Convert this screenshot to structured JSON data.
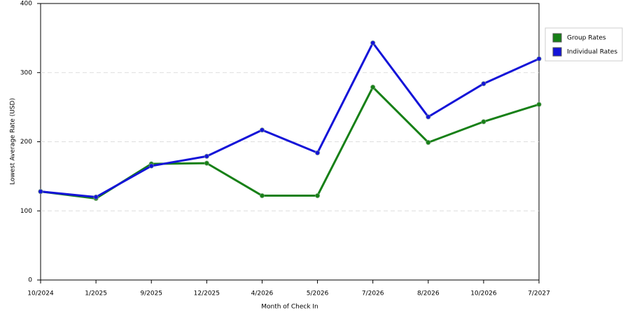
{
  "chart_data": {
    "type": "line",
    "x_label": "Month of Check In",
    "y_label": "Lowest Average Rate (USD)",
    "categories": [
      "10/2024",
      "1/2025",
      "9/2025",
      "12/2025",
      "4/2026",
      "5/2026",
      "7/2026",
      "8/2026",
      "10/2026",
      "7/2027"
    ],
    "series": [
      {
        "name": "Group Rates",
        "color": "#178017",
        "values": [
          128,
          118,
          168,
          169,
          122,
          122,
          279,
          199,
          229,
          254
        ]
      },
      {
        "name": "Individual Rates",
        "color": "#1414d8",
        "values": [
          128,
          120,
          165,
          179,
          217,
          184,
          343,
          236,
          284,
          320
        ]
      }
    ],
    "ylim": [
      0,
      400
    ],
    "yticks": [
      0,
      100,
      200,
      300,
      400
    ],
    "grid": true,
    "legend": "right"
  }
}
